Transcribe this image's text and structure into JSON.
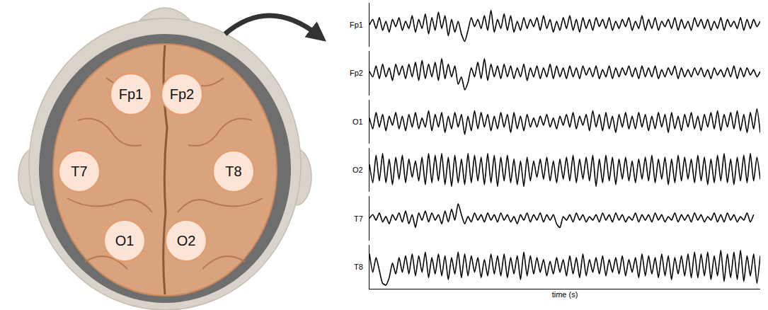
{
  "head_diagram": {
    "electrodes": [
      "Fp1",
      "Fp2",
      "T7",
      "T8",
      "O1",
      "O2"
    ]
  },
  "chart_data": {
    "type": "line",
    "x_label": "time (s)",
    "ylim": [
      -12,
      12
    ],
    "tick_labels": false,
    "grid": false,
    "series": [
      {
        "name": "Fp1",
        "color": "#000000",
        "values": [
          0,
          3,
          -2,
          4,
          -3,
          2,
          -4,
          3,
          -1,
          4,
          -3,
          2,
          -2,
          5,
          -4,
          3,
          -2,
          6,
          -5,
          4,
          -3,
          7,
          -2,
          5,
          -6,
          3,
          -4,
          2,
          -5,
          -9,
          -3,
          4,
          -1,
          3,
          -2,
          5,
          -3,
          8,
          -4,
          3,
          -2,
          6,
          -3,
          5,
          -4,
          2,
          -3,
          4,
          -2,
          3,
          -1,
          4,
          -3,
          5,
          -2,
          3,
          -4,
          2,
          -3,
          4,
          -2,
          5,
          -3,
          3,
          -4,
          4,
          -2,
          3,
          -3,
          4,
          -1,
          3,
          -2,
          4,
          -3,
          2,
          -2,
          3,
          -1,
          4,
          -3,
          2,
          -2,
          5,
          -3,
          3,
          -2,
          4,
          -3,
          2,
          -1,
          3,
          -2,
          4,
          -3,
          3,
          -2,
          2,
          -3,
          4,
          -1,
          3,
          -2,
          3,
          -3,
          2,
          -2,
          4,
          -3,
          3,
          -1,
          2,
          -2,
          4,
          -3,
          3,
          -2,
          3,
          -1,
          2
        ]
      },
      {
        "name": "Fp2",
        "color": "#000000",
        "values": [
          1,
          -2,
          4,
          -3,
          5,
          -2,
          3,
          -4,
          5,
          -1,
          4,
          -3,
          5,
          -2,
          6,
          -4,
          7,
          -3,
          5,
          -2,
          6,
          -4,
          8,
          -3,
          5,
          -2,
          4,
          -6,
          -2,
          -9,
          -5,
          3,
          -2,
          6,
          -3,
          8,
          -4,
          5,
          -2,
          4,
          -3,
          5,
          -2,
          4,
          -3,
          3,
          -2,
          5,
          -4,
          3,
          -2,
          4,
          -3,
          3,
          -2,
          5,
          -3,
          4,
          -2,
          3,
          -3,
          4,
          -2,
          3,
          -3,
          4,
          -1,
          3,
          -2,
          4,
          -3,
          2,
          -2,
          4,
          -3,
          3,
          -2,
          3,
          -1,
          4,
          -2,
          3,
          -3,
          4,
          -2,
          3,
          -2,
          4,
          -3,
          2,
          -2,
          3,
          -1,
          4,
          -3,
          3,
          -2,
          2,
          -2,
          3,
          -1,
          3,
          -2,
          2,
          -3,
          3,
          -1,
          2,
          -2,
          3,
          -2,
          4,
          -3,
          3,
          -2,
          3,
          -1,
          2,
          -2,
          1
        ]
      },
      {
        "name": "O1",
        "color": "#000000",
        "values": [
          2,
          -4,
          5,
          -3,
          4,
          -5,
          3,
          -2,
          5,
          -4,
          3,
          -5,
          4,
          -3,
          5,
          -4,
          2,
          -3,
          6,
          -5,
          4,
          -3,
          5,
          -6,
          3,
          -4,
          5,
          -3,
          4,
          -7,
          3,
          -5,
          6,
          -4,
          5,
          -3,
          4,
          -5,
          3,
          -4,
          5,
          -3,
          4,
          -6,
          5,
          -4,
          3,
          -5,
          4,
          -3,
          2,
          -3,
          3,
          -2,
          4,
          -3,
          2,
          -4,
          3,
          -2,
          4,
          -3,
          5,
          -4,
          3,
          -2,
          4,
          -5,
          6,
          -3,
          4,
          -5,
          5,
          -4,
          3,
          -6,
          4,
          -3,
          5,
          -4,
          3,
          -4,
          5,
          -3,
          4,
          -5,
          3,
          -4,
          5,
          -3,
          4,
          -6,
          5,
          -4,
          3,
          -5,
          4,
          -3,
          5,
          -4,
          3,
          -5,
          4,
          -3,
          5,
          -4,
          6,
          -5,
          4,
          -3,
          5,
          -4,
          6,
          -5,
          4,
          -6,
          5,
          -4,
          7,
          -6
        ]
      },
      {
        "name": "O2",
        "color": "#000000",
        "values": [
          3,
          -7,
          8,
          -6,
          9,
          -7,
          6,
          -8,
          7,
          -5,
          8,
          -7,
          6,
          -4,
          5,
          -6,
          7,
          -8,
          9,
          -7,
          8,
          -6,
          9,
          -8,
          7,
          -9,
          8,
          -7,
          6,
          -8,
          9,
          -7,
          8,
          -6,
          7,
          -8,
          9,
          -7,
          8,
          -9,
          7,
          -6,
          8,
          -7,
          6,
          -8,
          5,
          -9,
          7,
          -6,
          5,
          -4,
          6,
          -5,
          7,
          -6,
          5,
          -7,
          6,
          -5,
          7,
          -6,
          8,
          -7,
          6,
          -5,
          7,
          -6,
          8,
          -9,
          6,
          -7,
          8,
          -6,
          7,
          -8,
          6,
          -5,
          7,
          -6,
          5,
          -7,
          6,
          -5,
          7,
          -6,
          8,
          -7,
          6,
          -5,
          7,
          -8,
          6,
          -7,
          8,
          -6,
          7,
          -5,
          6,
          -7,
          8,
          -6,
          7,
          -8,
          6,
          -7,
          8,
          -6,
          9,
          -7,
          6,
          -8,
          7,
          -6,
          8,
          -7,
          9,
          -6,
          7,
          -5
        ]
      },
      {
        "name": "T7",
        "color": "#000000",
        "values": [
          0,
          2,
          -1,
          3,
          -2,
          1,
          -3,
          2,
          -1,
          3,
          -2,
          4,
          -3,
          2,
          -5,
          3,
          -1,
          4,
          -2,
          3,
          -1,
          2,
          -3,
          4,
          -2,
          5,
          -1,
          8,
          2,
          -3,
          1,
          -2,
          3,
          -1,
          2,
          -2,
          3,
          -1,
          2,
          -2,
          3,
          -1,
          2,
          -2,
          1,
          -3,
          2,
          -1,
          3,
          -2,
          2,
          -1,
          3,
          -2,
          2,
          -1,
          2,
          -3,
          -5,
          1,
          -1,
          2,
          -2,
          3,
          -1,
          2,
          -2,
          1,
          -1,
          2,
          -2,
          3,
          -1,
          2,
          -2,
          3,
          -1,
          2,
          -2,
          1,
          -1,
          3,
          -2,
          2,
          -1,
          2,
          -2,
          3,
          -1,
          2,
          -2,
          1,
          -1,
          3,
          -2,
          2,
          -1,
          2,
          -2,
          3,
          -1,
          2,
          -2,
          1,
          -1,
          3,
          -2,
          2,
          -2,
          3,
          -1,
          2,
          -2,
          1,
          -1,
          3,
          -2,
          2
        ]
      },
      {
        "name": "T8",
        "color": "#000000",
        "values": [
          7,
          -3,
          5,
          -2,
          -9,
          -10,
          -6,
          2,
          -4,
          5,
          -3,
          6,
          -4,
          7,
          -5,
          6,
          -3,
          8,
          -6,
          5,
          -4,
          7,
          -5,
          6,
          -7,
          5,
          -4,
          8,
          -6,
          7,
          -5,
          6,
          -3,
          5,
          -6,
          4,
          -5,
          7,
          -4,
          6,
          -5,
          7,
          -6,
          5,
          -4,
          6,
          -7,
          8,
          -5,
          6,
          -4,
          5,
          -3,
          4,
          -5,
          3,
          -4,
          5,
          -3,
          4,
          -5,
          6,
          -4,
          5,
          -6,
          7,
          -5,
          4,
          -3,
          5,
          -4,
          6,
          -5,
          4,
          -3,
          5,
          -4,
          6,
          -5,
          4,
          -3,
          5,
          -6,
          7,
          -5,
          6,
          -4,
          5,
          -6,
          7,
          -5,
          6,
          -7,
          5,
          -4,
          6,
          -5,
          7,
          -6,
          8,
          -6,
          7,
          -5,
          8,
          -7,
          6,
          -5,
          9,
          -8,
          7,
          -6,
          8,
          -7,
          9,
          -8,
          6,
          -5,
          7,
          -9,
          6
        ]
      }
    ]
  }
}
